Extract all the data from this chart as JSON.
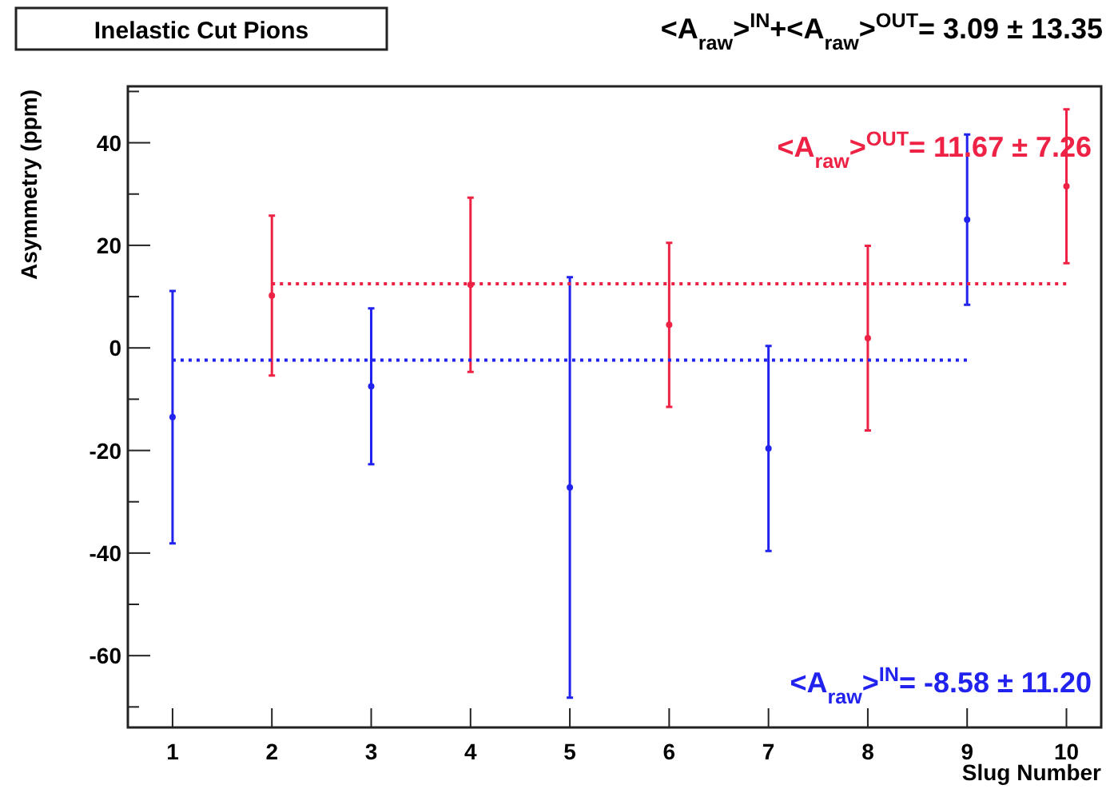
{
  "chart_data": {
    "type": "scatter",
    "title": "Inelastic Cut Pions",
    "xlabel": "Slug Number",
    "ylabel": "Asymmetry (ppm)",
    "annotations": [
      "<A$_{raw}$>$^{IN}$+<A$_{raw}$>$^{OUT}$= 3.09 ± 13.35",
      "<A$_{raw}$>$^{OUT}$= 11.67 ± 7.26",
      "<A$_{raw}$>$^{IN}$= -8.58 ± 11.20"
    ],
    "xlim": [
      0.55,
      10.35
    ],
    "ylim": [
      -74,
      51
    ],
    "xticks": [
      1,
      2,
      3,
      4,
      5,
      6,
      7,
      8,
      9,
      10
    ],
    "yticks": [
      {
        "value": -70,
        "label": null
      },
      -60,
      {
        "value": -50,
        "label": null
      },
      -40,
      {
        "value": -30,
        "label": null
      },
      -20,
      {
        "value": -10,
        "label": null
      },
      0,
      {
        "value": 10,
        "label": null
      },
      20,
      {
        "value": 30,
        "label": null
      },
      40,
      {
        "value": 50,
        "label": null
      }
    ],
    "marker": "circle",
    "grid": false,
    "series": [
      {
        "color": "#2222ee",
        "x": [
          1,
          3,
          5,
          7,
          9
        ],
        "values": [
          -13.5,
          -7.5,
          -27.2,
          -19.6,
          25
        ],
        "errors": [
          24.6,
          15.2,
          41,
          20,
          16.6
        ]
      },
      {
        "color": "#ee2244",
        "x": [
          2,
          4,
          6,
          8,
          10
        ],
        "values": [
          10.2,
          12.3,
          4.5,
          1.9,
          31.5
        ],
        "errors": [
          15.6,
          17,
          16,
          18,
          15
        ]
      },
      {
        "type": "line",
        "line_style": "dotted",
        "marker": "none",
        "color": "#2222ee",
        "x": [
          1,
          9
        ],
        "values": [
          -2.4,
          -2.4
        ]
      },
      {
        "type": "line",
        "line_style": "dotted",
        "marker": "none",
        "color": "#ee2244",
        "x": [
          2,
          10
        ],
        "values": [
          12.5,
          12.5
        ]
      }
    ]
  }
}
